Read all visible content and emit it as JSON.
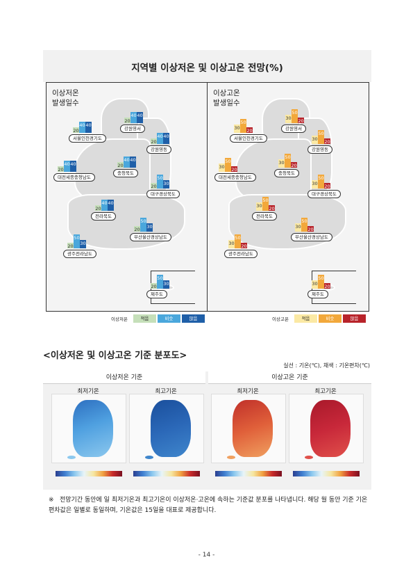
{
  "title": "지역별 이상저온 및 이상고온 전망(%)",
  "low_box": {
    "title_line1": "이상저온",
    "title_line2": "발생일수",
    "regions": [
      {
        "name": "서울인천경기도",
        "values": [
          "20",
          "40",
          "40"
        ]
      },
      {
        "name": "강원영서",
        "values": [
          "20",
          "40",
          "40"
        ]
      },
      {
        "name": "강원영동",
        "values": [
          "20",
          "40",
          "40"
        ]
      },
      {
        "name": "충청북도",
        "values": [
          "20",
          "40",
          "40"
        ]
      },
      {
        "name": "대전세종충청남도",
        "values": [
          "20",
          "40",
          "40"
        ]
      },
      {
        "name": "대구경상북도",
        "values": [
          "20",
          "50",
          "30"
        ]
      },
      {
        "name": "전라북도",
        "values": [
          "20",
          "40",
          "40"
        ]
      },
      {
        "name": "부산울산경상남도",
        "values": [
          "20",
          "50",
          "30"
        ]
      },
      {
        "name": "광주전라남도",
        "values": [
          "20",
          "50",
          "30"
        ]
      },
      {
        "name": "제주도",
        "values": [
          "20",
          "50",
          "30"
        ]
      }
    ]
  },
  "high_box": {
    "title_line1": "이상고온",
    "title_line2": "발생일수",
    "regions": [
      {
        "name": "서울인천경기도",
        "values": [
          "30",
          "50",
          "20"
        ]
      },
      {
        "name": "강원영서",
        "values": [
          "30",
          "50",
          "20"
        ]
      },
      {
        "name": "강원영동",
        "values": [
          "30",
          "50",
          "20"
        ]
      },
      {
        "name": "충청북도",
        "values": [
          "30",
          "50",
          "20"
        ]
      },
      {
        "name": "대전세종충청남도",
        "values": [
          "30",
          "50",
          "20"
        ]
      },
      {
        "name": "대구경상북도",
        "values": [
          "30",
          "50",
          "20"
        ]
      },
      {
        "name": "전라북도",
        "values": [
          "30",
          "50",
          "20"
        ]
      },
      {
        "name": "부산울산경상남도",
        "values": [
          "30",
          "50",
          "20"
        ]
      },
      {
        "name": "광주전라남도",
        "values": [
          "30",
          "50",
          "20"
        ]
      },
      {
        "name": "제주도",
        "values": [
          "30",
          "50",
          "20"
        ]
      }
    ]
  },
  "legend_low": {
    "label": "이상저온",
    "items": [
      "적음",
      "비슷",
      "많음"
    ]
  },
  "legend_high": {
    "label": "이상고온",
    "items": [
      "적음",
      "비슷",
      "많음"
    ]
  },
  "colors": {
    "low": [
      "#c5dfb9",
      "#4aa7dc",
      "#1f5fa8"
    ],
    "high": [
      "#fbe9a4",
      "#f2a83b",
      "#b8232a"
    ]
  },
  "section_title": "<이상저온 및 이상고온 기준 분포도>",
  "unit_note": "실선 : 기온(℃), 채색 : 기온편차(℃)",
  "dist": {
    "low_header": "이상저온 기준",
    "high_header": "이상고온 기준",
    "labels": [
      "최저기온",
      "최고기온",
      "최저기온",
      "최고기온"
    ]
  },
  "note_mark": "※",
  "note_text": "전망기간 동안에 일 최저기온과 최고기온이 이상저온·고온에 속하는 기준값 분포를 나타냅니다. 해당 월 동안 기준 기온 편차값은 일별로 동일하며, 기온값은 15일을 대표로 제공합니다.",
  "page_number": "- 14 -"
}
